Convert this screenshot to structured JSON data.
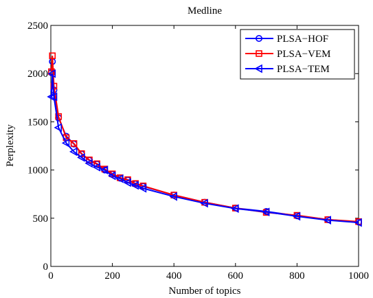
{
  "chart_data": {
    "type": "line",
    "title": "Medline",
    "xlabel": "Number of topics",
    "ylabel": "Perplexity",
    "xlim": [
      0,
      1000
    ],
    "ylim": [
      0,
      2500
    ],
    "xticks": [
      0,
      200,
      400,
      600,
      800,
      1000
    ],
    "yticks": [
      0,
      500,
      1000,
      1500,
      2000,
      2500
    ],
    "xtick_labels": [
      "0",
      "200",
      "400",
      "600",
      "800",
      "1000"
    ],
    "ytick_labels": [
      "0",
      "500",
      "1000",
      "1500",
      "2000",
      "2500"
    ],
    "grid": false,
    "legend_position": "top-right",
    "series": [
      {
        "name": "PLSA−HOF",
        "color": "#0000ff",
        "marker": "circle",
        "x": [
          2,
          5,
          10,
          25,
          50,
          75,
          100,
          125,
          150,
          175,
          200,
          225,
          250,
          275,
          300,
          400,
          500,
          600,
          700,
          800,
          900,
          1000
        ],
        "y": [
          2010,
          2125,
          1830,
          1540,
          1350,
          1270,
          1165,
          1100,
          1060,
          1000,
          955,
          915,
          895,
          855,
          830,
          740,
          665,
          605,
          570,
          525,
          485,
          460
        ]
      },
      {
        "name": "PLSA−VEM",
        "color": "#ff0000",
        "marker": "square",
        "x": [
          2,
          5,
          10,
          25,
          50,
          75,
          100,
          125,
          150,
          175,
          200,
          225,
          250,
          275,
          300,
          400,
          500,
          600,
          700,
          800,
          900,
          1000
        ],
        "y": [
          2020,
          2185,
          1870,
          1555,
          1335,
          1275,
          1170,
          1105,
          1065,
          1010,
          960,
          920,
          900,
          860,
          835,
          740,
          665,
          605,
          560,
          530,
          485,
          465
        ]
      },
      {
        "name": "PLSA−TEM",
        "color": "#0000ff",
        "marker": "triangle-left",
        "x": [
          2,
          5,
          10,
          25,
          50,
          75,
          100,
          125,
          150,
          175,
          200,
          225,
          250,
          275,
          300,
          400,
          500,
          600,
          700,
          800,
          900,
          1000
        ],
        "y": [
          1760,
          2000,
          1760,
          1440,
          1280,
          1190,
          1130,
          1070,
          1030,
          1000,
          940,
          910,
          870,
          840,
          810,
          725,
          655,
          600,
          565,
          520,
          480,
          455
        ]
      }
    ]
  }
}
